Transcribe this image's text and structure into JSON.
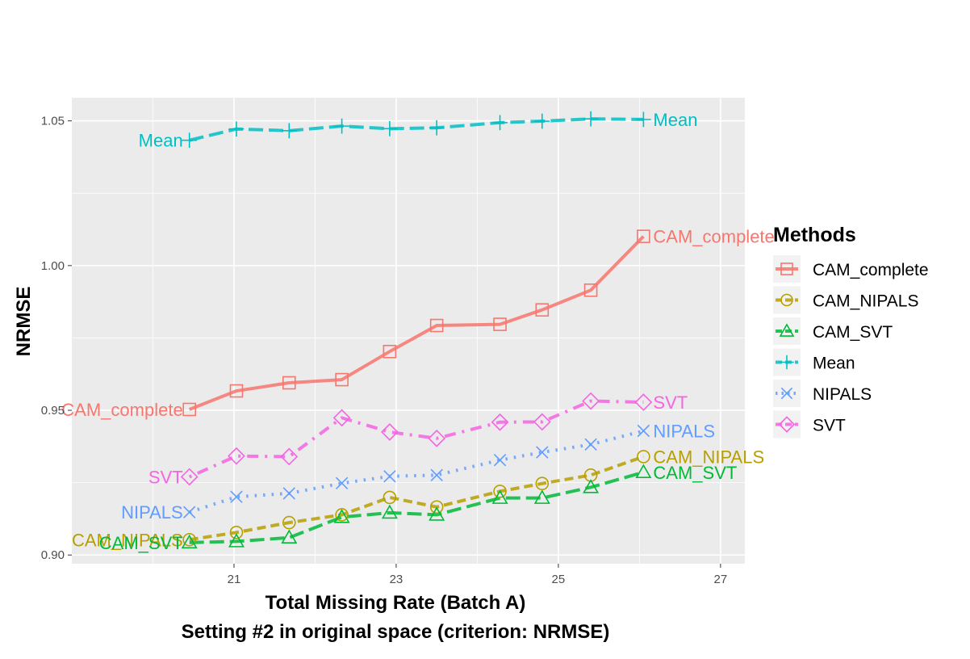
{
  "chart_data": {
    "type": "line",
    "xlabel": "Total Missing Rate (Batch A)",
    "subtitle": "Setting #2 in original space (criterion: NRMSE)",
    "ylabel": "NRMSE",
    "xlim": [
      19.0,
      27.3
    ],
    "ylim": [
      0.897,
      1.058
    ],
    "x_ticks": [
      21,
      23,
      25,
      27
    ],
    "y_ticks": [
      0.9,
      0.95,
      1.0,
      1.05
    ],
    "x_tick_labels": [
      "21",
      "23",
      "25",
      "27"
    ],
    "y_tick_labels": [
      "0.90",
      "0.95",
      "1.00",
      "1.05"
    ],
    "grid": true,
    "legend": {
      "title": "Methods",
      "position": "right"
    },
    "x": [
      20.45,
      21.03,
      21.68,
      22.33,
      22.92,
      23.5,
      24.28,
      24.8,
      25.4,
      26.05
    ],
    "series": [
      {
        "name": "CAM_complete",
        "color": "#F8766D",
        "linetype": "solid",
        "marker": "square",
        "values": [
          0.9503,
          0.9567,
          0.9595,
          0.9606,
          0.9703,
          0.9793,
          0.9797,
          0.9847,
          0.9915,
          1.0101
        ]
      },
      {
        "name": "CAM_NIPALS",
        "color": "#B79F00",
        "linetype": "dashed",
        "marker": "circle",
        "values": [
          0.9053,
          0.9078,
          0.9112,
          0.9139,
          0.9199,
          0.9166,
          0.922,
          0.9247,
          0.9276,
          0.934
        ]
      },
      {
        "name": "CAM_SVT",
        "color": "#00BA38",
        "linetype": "longdash",
        "marker": "triangle",
        "values": [
          0.9043,
          0.9047,
          0.906,
          0.9131,
          0.9146,
          0.9139,
          0.9197,
          0.9197,
          0.9234,
          0.9286
        ]
      },
      {
        "name": "Mean",
        "color": "#00BFC4",
        "linetype": "longdash",
        "marker": "plus",
        "values": [
          1.0433,
          1.0472,
          1.0466,
          1.0482,
          1.0473,
          1.0476,
          1.0494,
          1.0499,
          1.0507,
          1.0505
        ]
      },
      {
        "name": "NIPALS",
        "color": "#619CFF",
        "linetype": "dotted",
        "marker": "x",
        "values": [
          0.9148,
          0.9201,
          0.9213,
          0.9248,
          0.9272,
          0.9276,
          0.9328,
          0.9355,
          0.9382,
          0.9429
        ]
      },
      {
        "name": "SVT",
        "color": "#F564E3",
        "linetype": "dotdash",
        "marker": "diamond",
        "values": [
          0.927,
          0.9342,
          0.934,
          0.9474,
          0.9425,
          0.9403,
          0.9459,
          0.946,
          0.9532,
          0.9528
        ]
      }
    ]
  }
}
